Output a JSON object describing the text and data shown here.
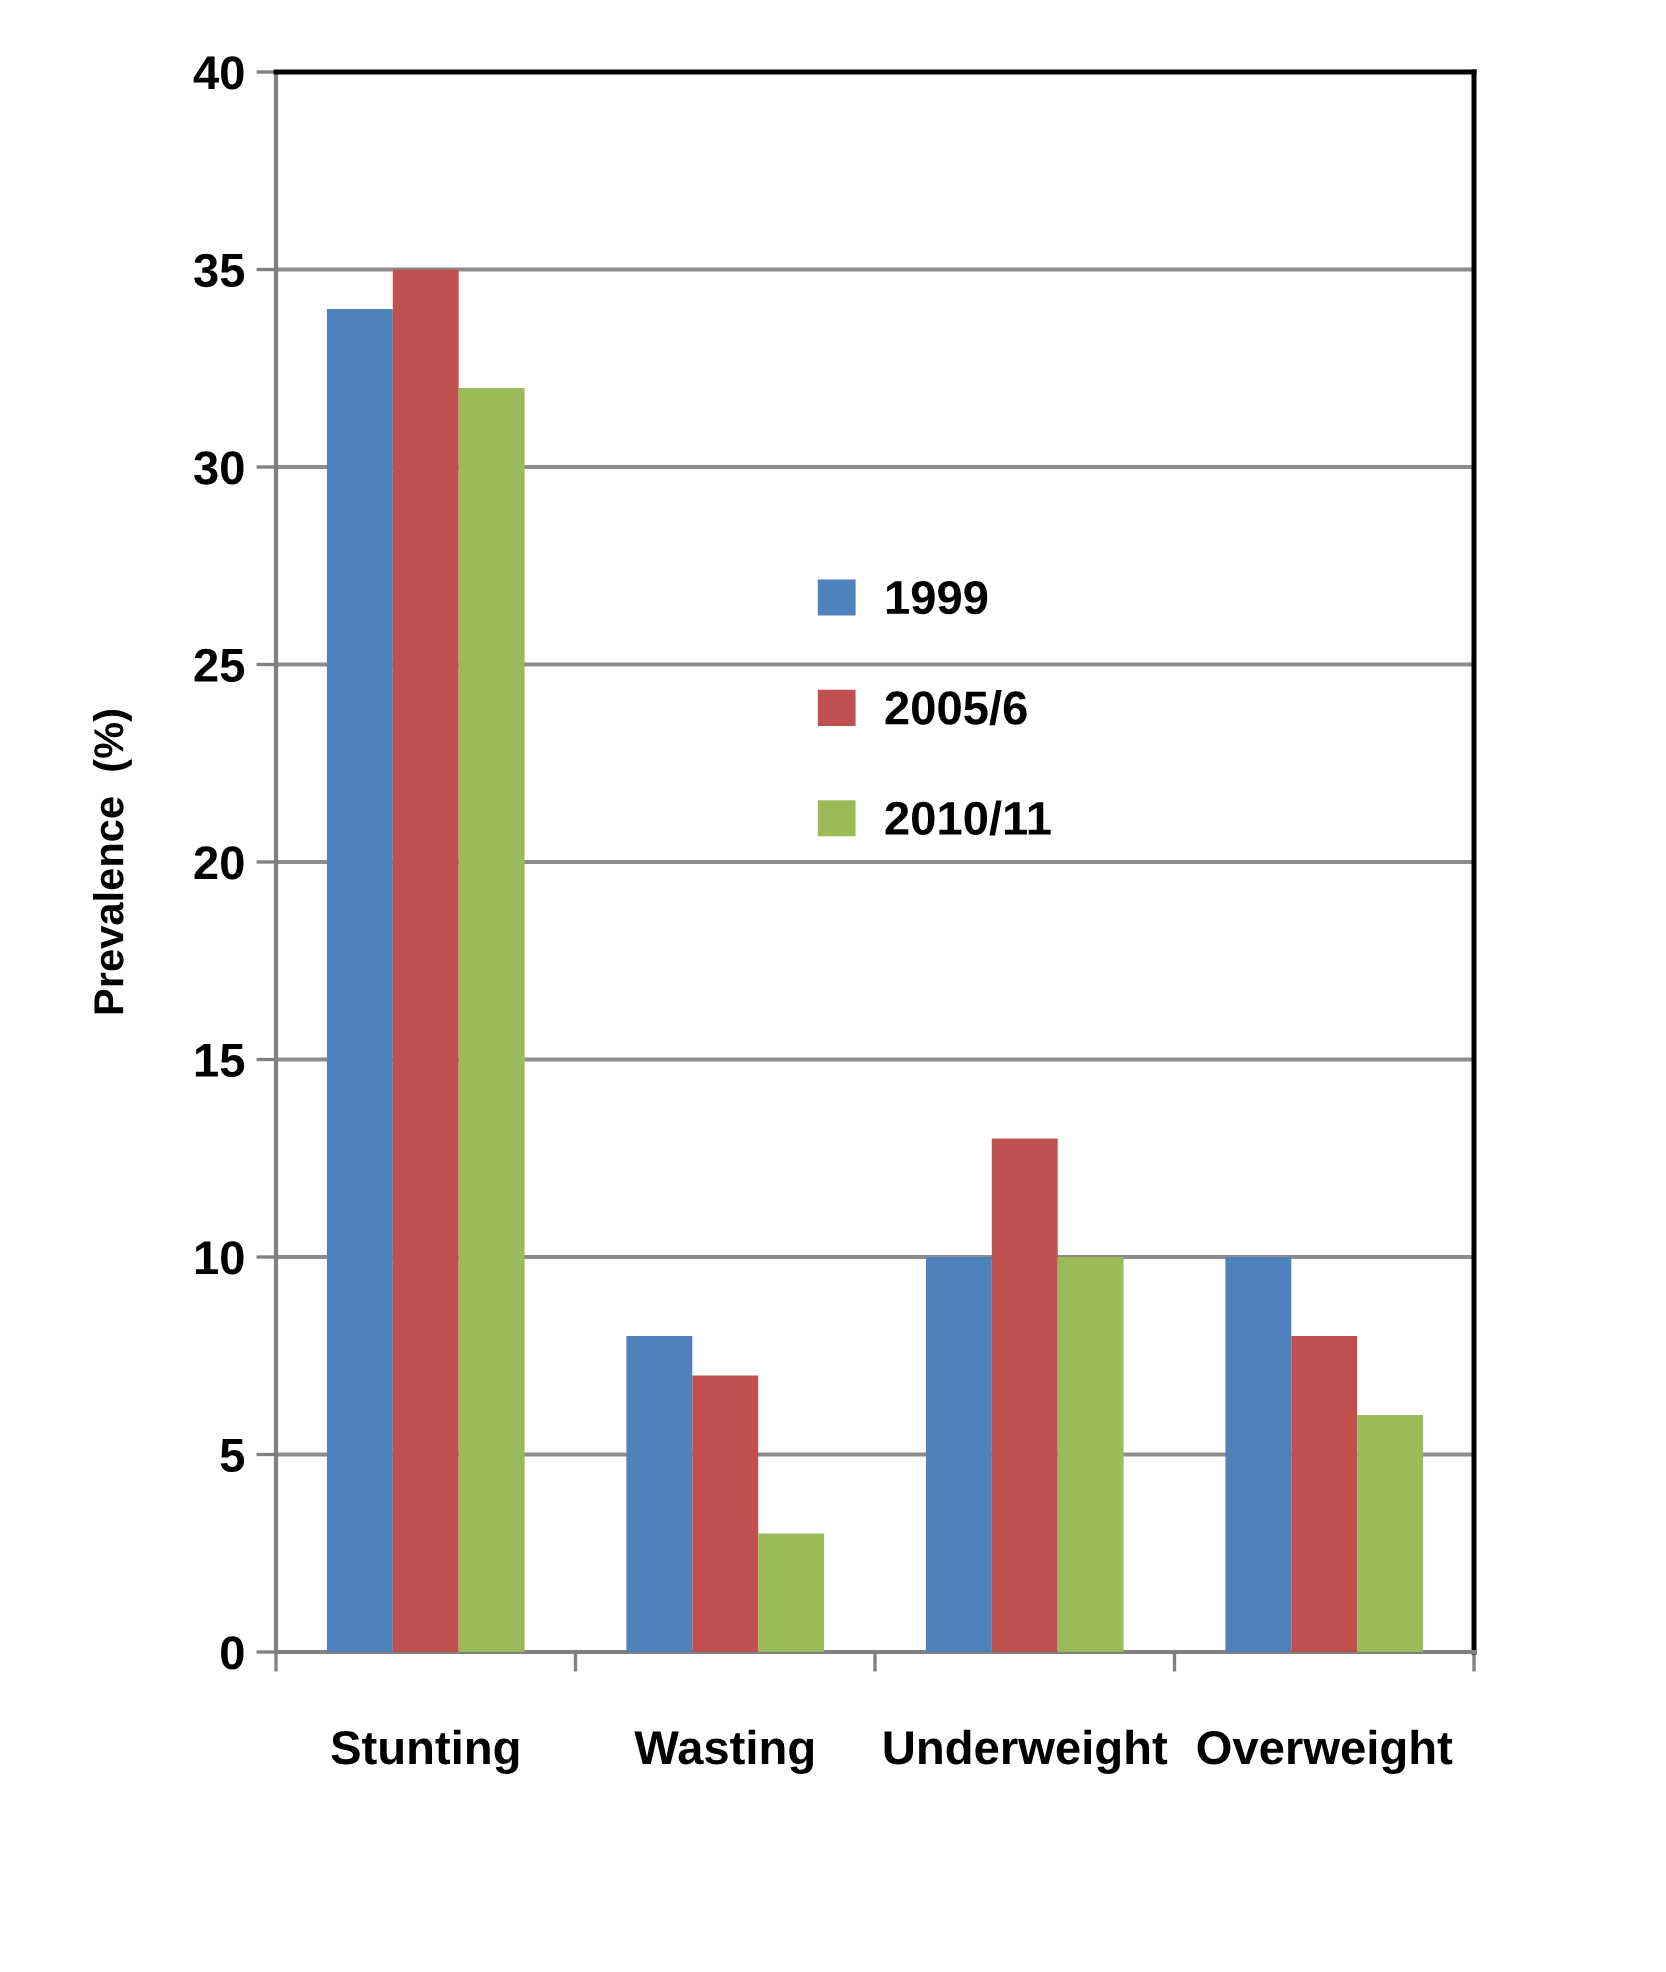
{
  "chart_data": {
    "type": "bar",
    "ylabel": "Prevalence  (%)",
    "categories": [
      "Stunting",
      "Wasting",
      "Underweight",
      "Overweight"
    ],
    "series": [
      {
        "name": "1999",
        "color": "#4f81bd",
        "values": [
          34,
          8,
          10,
          10
        ]
      },
      {
        "name": "2005/6",
        "color": "#c0504d",
        "values": [
          35,
          7,
          13,
          8
        ]
      },
      {
        "name": "2010/11",
        "color": "#9bbb59",
        "values": [
          32,
          3,
          10,
          6
        ]
      }
    ],
    "ylim": [
      0,
      40
    ],
    "yticks": [
      0,
      5,
      10,
      15,
      20,
      25,
      30,
      35,
      40
    ],
    "grid": "y",
    "legend": "center"
  }
}
